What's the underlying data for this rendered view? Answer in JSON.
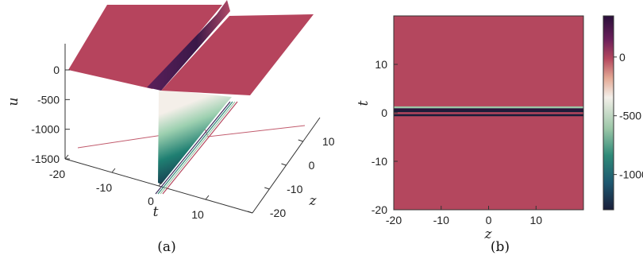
{
  "chart_data": [
    {
      "type": "surface3d",
      "caption": "(a)",
      "zlabel": "u",
      "xlabel": "t",
      "ylabel": "z",
      "z_ticks": [
        0,
        -500,
        -1000,
        -1500
      ],
      "t_ticks": [
        -20,
        -10,
        0,
        10
      ],
      "z_axis_ticks": [
        10,
        0,
        -10,
        -20
      ],
      "zlim": [
        -1500,
        350
      ],
      "tlim": [
        -20,
        20
      ],
      "zrange": [
        -20,
        20
      ],
      "surface_level": 0,
      "peak_value": 350,
      "trough_value": -1300,
      "feature_location_t": 0,
      "grid": false,
      "colormap": [
        "#2a1e3a",
        "#5a1f5a",
        "#b04060",
        "#e8b8a8",
        "#f2f0ee",
        "#8fc7a8",
        "#208070",
        "#1a3850"
      ]
    },
    {
      "type": "heatmap",
      "caption": "(b)",
      "xlabel": "z",
      "ylabel": "t",
      "x_ticks": [
        -20,
        -10,
        0,
        10
      ],
      "y_ticks": [
        10,
        0,
        -10,
        -20
      ],
      "xlim": [
        -20,
        20
      ],
      "ylim": [
        -20,
        20
      ],
      "colorbar_ticks": [
        0,
        -500,
        -1000
      ],
      "colorbar_range": [
        -1300,
        350
      ],
      "background_value": 0,
      "band_center_t": 0,
      "band_profile": [
        {
          "t": 1.0,
          "value": -300
        },
        {
          "t": 0.6,
          "value": -1250
        },
        {
          "t": 0.2,
          "value": 300
        },
        {
          "t": -0.2,
          "value": -900
        },
        {
          "t": -0.6,
          "value": 300
        }
      ],
      "grid": false,
      "colormap": [
        "#1a1e3a",
        "#1e5870",
        "#2f8a78",
        "#9cc7a8",
        "#f3efe9",
        "#e3a894",
        "#b4475e",
        "#6a1f5a",
        "#2a0f3a"
      ]
    }
  ]
}
